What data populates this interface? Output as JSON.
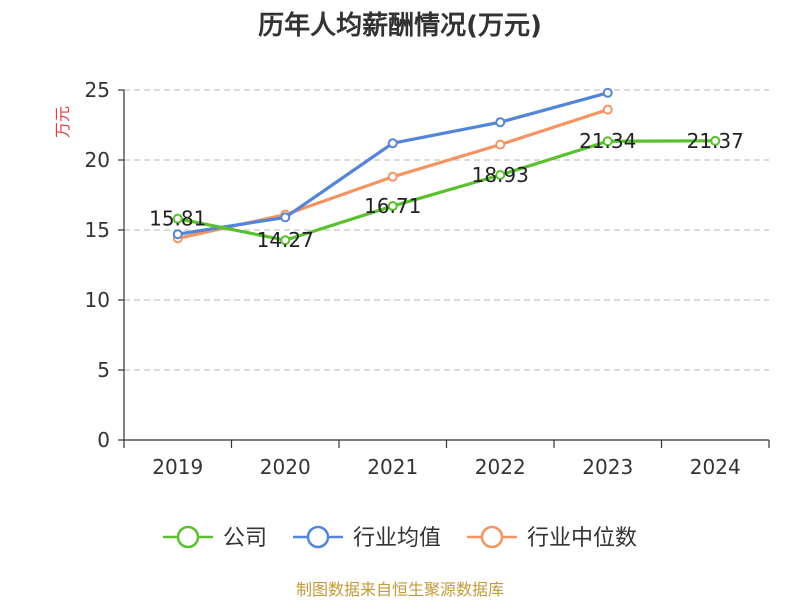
{
  "chart_data": {
    "type": "line",
    "title": "历年人均薪酬情况(万元)",
    "ylabel": "万元",
    "ylim": [
      0,
      25
    ],
    "yticks": [
      0,
      5,
      10,
      15,
      20,
      25
    ],
    "categories": [
      "2019",
      "2020",
      "2021",
      "2022",
      "2023",
      "2024"
    ],
    "grid": true,
    "legend_position": "bottom",
    "series": [
      {
        "name": "公司",
        "color": "#5ac02d",
        "values": [
          15.81,
          14.27,
          16.71,
          18.93,
          21.34,
          21.37
        ],
        "labels": [
          "15.81",
          "14.27",
          "16.71",
          "18.93",
          "21.34",
          "21.37"
        ]
      },
      {
        "name": "行业均值",
        "color": "#5385d9",
        "values": [
          14.7,
          15.9,
          21.2,
          22.7,
          24.8,
          null
        ]
      },
      {
        "name": "行业中位数",
        "color": "#f59462",
        "values": [
          14.4,
          16.1,
          18.8,
          21.1,
          23.6,
          null
        ]
      }
    ]
  },
  "ylabel_color": "#e03c3c",
  "source": {
    "text": "制图数据来自恒生聚源数据库",
    "color": "#c49a3a"
  }
}
